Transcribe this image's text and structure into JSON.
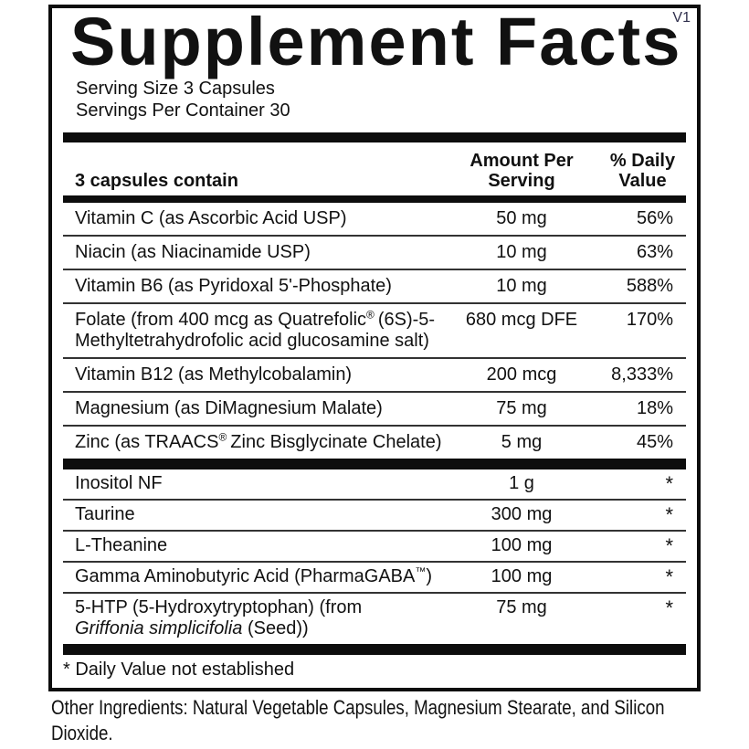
{
  "version_tag": "V1",
  "title": "Supplement Facts",
  "serving": {
    "size": "Serving Size 3 Capsules",
    "per_container": "Servings Per Container 30"
  },
  "table": {
    "header": {
      "col_name": "3 capsules contain",
      "col_amount_line1": "Amount Per",
      "col_amount_line2": "Serving",
      "col_dv_line1": "% Daily",
      "col_dv_line2": "Value"
    },
    "groups": [
      {
        "rows": [
          {
            "name": [
              {
                "t": "Vitamin C (as Ascorbic Acid USP)"
              }
            ],
            "amount": "50 mg",
            "dv": "56%"
          },
          {
            "name": [
              {
                "t": "Niacin (as Niacinamide USP)"
              }
            ],
            "amount": "10 mg",
            "dv": "63%"
          },
          {
            "name": [
              {
                "t": "Vitamin B6 (as Pyridoxal 5'-Phosphate)"
              }
            ],
            "amount": "10 mg",
            "dv": "588%"
          },
          {
            "name": [
              {
                "t": "Folate (from 400 mcg as Quatrefolic"
              },
              {
                "t": "®",
                "sup": true
              },
              {
                "t": " (6S)-5-"
              },
              {
                "br": true
              },
              {
                "t": "Methyltetrahydrofolic acid glucosamine salt)"
              }
            ],
            "amount": "680 mcg DFE",
            "dv": "170%"
          },
          {
            "name": [
              {
                "t": "Vitamin B12 (as Methylcobalamin)"
              }
            ],
            "amount": "200 mcg",
            "dv": "8,333%"
          },
          {
            "name": [
              {
                "t": "Magnesium (as DiMagnesium Malate)"
              }
            ],
            "amount": "75 mg",
            "dv": "18%"
          },
          {
            "name": [
              {
                "t": "Zinc (as TRAACS"
              },
              {
                "t": "®",
                "sup": true
              },
              {
                "t": " Zinc Bisglycinate Chelate)"
              }
            ],
            "amount": "5 mg",
            "dv": "45%"
          }
        ]
      },
      {
        "rows": [
          {
            "name": [
              {
                "t": "Inositol NF"
              }
            ],
            "amount": "1 g",
            "dv": "*"
          },
          {
            "name": [
              {
                "t": "Taurine"
              }
            ],
            "amount": "300 mg",
            "dv": "*"
          },
          {
            "name": [
              {
                "t": "L-Theanine"
              }
            ],
            "amount": "100 mg",
            "dv": "*"
          },
          {
            "name": [
              {
                "t": "Gamma Aminobutyric Acid (PharmaGABA"
              },
              {
                "t": "™",
                "sup": true
              },
              {
                "t": ")"
              }
            ],
            "amount": "100 mg",
            "dv": "*"
          },
          {
            "name": [
              {
                "t": "5-HTP (5-Hydroxytryptophan) (from"
              },
              {
                "br": true
              },
              {
                "t": "Griffonia simplicifolia",
                "i": true
              },
              {
                "t": " (Seed))"
              }
            ],
            "amount": "75 mg",
            "dv": "*"
          }
        ]
      }
    ],
    "footnote": "* Daily Value not established"
  },
  "other_ingredients": "Other Ingredients: Natural Vegetable Capsules, Magnesium Stearate, and Silicon Dioxide.",
  "colors": {
    "ink": "#0d0d0d",
    "version_tag": "#30304d"
  }
}
